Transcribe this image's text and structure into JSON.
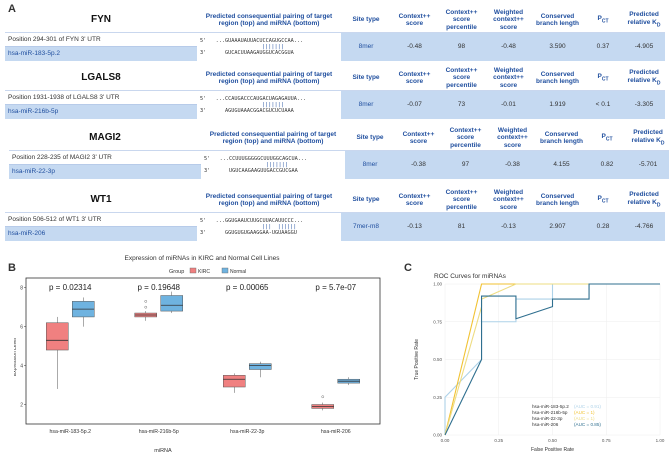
{
  "panel_labels": {
    "a": "A",
    "b": "B",
    "c": "C"
  },
  "table": {
    "headers": {
      "pairing": "Predicted consequential pairing of target region (top) and miRNA (bottom)",
      "site_type": "Site type",
      "context_score": "Context++ score",
      "context_pct": "Context++ score percentile",
      "weighted": "Weighted context++ score",
      "branch": "Conserved branch length",
      "pct": "P",
      "pct_sub": "CT",
      "kd": "Predicted relative K",
      "kd_sub": "D"
    },
    "rows": [
      {
        "gene": "FYN",
        "position": "Position 294-301 of FYN 3' UTR",
        "mirna": "hsa-miR-183-5p.2",
        "top": "5'   ...GUAAAUAUUACUCCAGUGCCAA...",
        "bars": "|||||||",
        "bottom": "3'      GUCACUUAAGAUGGUCACGGUA",
        "site": "8mer",
        "ctx": "-0.48",
        "pctl": "98",
        "wctx": "-0.48",
        "branch": "3.590",
        "pct": "0.37",
        "kd": "-4.905"
      },
      {
        "gene": "LGALS8",
        "position": "Position 1931-1938 of LGALS8 3' UTR",
        "mirna": "hsa-miR-216b-5p",
        "top": "5'   ...CCAUGACCCAUGACUAGAGAUUA...",
        "bars": "|||||||",
        "bottom": "3'      AGUGUAAACGGACGUCUCUAAA",
        "site": "8mer",
        "ctx": "-0.07",
        "pctl": "73",
        "wctx": "-0.01",
        "branch": "1.919",
        "pct": "< 0.1",
        "kd": "-3.305"
      },
      {
        "gene": "MAGI2",
        "position": "Position 228-235 of MAGI2 3' UTR",
        "mirna": "hsa-miR-22-3p",
        "top": "5'   ...CCUUUGGGGGCUUUGGCAGCUA...",
        "bars": "|||||||",
        "bottom": "3'      UGUCAAGAAGUUGACCGUCGAA",
        "site": "8mer",
        "ctx": "-0.38",
        "pctl": "97",
        "wctx": "-0.38",
        "branch": "4.155",
        "pct": "0.82",
        "kd": "-5.701"
      },
      {
        "gene": "WT1",
        "position": "Position 506-512 of WT1 3' UTR",
        "mirna": "hsa-miR-206",
        "top": "5'   ...GGUGAAUCUUGCUUACAUUCCC...",
        "bars": "|||  ||||||",
        "bottom": "3'      GGUGUGUGAAGGAA-UGUAAGGU",
        "site": "7mer-m8",
        "ctx": "-0.13",
        "pctl": "81",
        "wctx": "-0.13",
        "branch": "2.907",
        "pct": "0.28",
        "kd": "-4.766"
      }
    ]
  },
  "chart_data": [
    {
      "type": "boxplot",
      "title": "Expression of miRNAs in KIRC and Normal Cell Lines",
      "xlabel": "miRNA",
      "ylabel": "Expression Level",
      "legend_title": "Group",
      "legend": [
        "KIRC",
        "Normal"
      ],
      "colors": {
        "KIRC": "#f08080",
        "Normal": "#6fb3e0"
      },
      "categories": [
        "hsa-miR-183-5p.2",
        "hsa-miR-216b-5p",
        "hsa-miR-22-3p",
        "hsa-miR-206"
      ],
      "pvalues": [
        "p = 0.02314",
        "p = 0.19648",
        "p = 0.00065",
        "p = 5.7e-07"
      ],
      "yticks": [
        2,
        4,
        6,
        8
      ],
      "ylim": [
        1,
        8.5
      ],
      "series": [
        {
          "name": "KIRC",
          "boxes": [
            {
              "min": 2.8,
              "q1": 4.8,
              "median": 5.3,
              "q3": 6.2,
              "max": 6.5,
              "outliers": []
            },
            {
              "min": 6.3,
              "q1": 6.5,
              "median": 6.6,
              "q3": 6.7,
              "max": 6.8,
              "outliers": [
                7.0,
                7.3
              ]
            },
            {
              "min": 2.6,
              "q1": 2.9,
              "median": 3.3,
              "q3": 3.5,
              "max": 3.6,
              "outliers": []
            },
            {
              "min": 1.7,
              "q1": 1.8,
              "median": 1.9,
              "q3": 2.0,
              "max": 2.1,
              "outliers": [
                2.4
              ]
            }
          ]
        },
        {
          "name": "Normal",
          "boxes": [
            {
              "min": 6.0,
              "q1": 6.5,
              "median": 6.9,
              "q3": 7.3,
              "max": 7.5,
              "outliers": []
            },
            {
              "min": 6.7,
              "q1": 6.8,
              "median": 7.1,
              "q3": 7.6,
              "max": 7.8,
              "outliers": []
            },
            {
              "min": 3.4,
              "q1": 3.8,
              "median": 4.0,
              "q3": 4.1,
              "max": 4.2,
              "outliers": []
            },
            {
              "min": 3.0,
              "q1": 3.1,
              "median": 3.2,
              "q3": 3.3,
              "max": 3.4,
              "outliers": []
            }
          ]
        }
      ]
    },
    {
      "type": "line",
      "title": "ROC Curves for miRNAs",
      "xlabel": "False Positive Rate",
      "ylabel": "True Positive Rate",
      "xlim": [
        0,
        1
      ],
      "ylim": [
        0,
        1
      ],
      "ticks": [
        "0.00",
        "0.25",
        "0.50",
        "0.75",
        "1.00"
      ],
      "series": [
        {
          "name": "hsa-miR-183-5p.2",
          "auc": "(AUC = 0.91)",
          "color": "#aed2e8",
          "x": [
            0,
            0,
            0.17,
            0.17,
            0.33,
            0.33,
            0.5,
            0.5,
            1.0
          ],
          "y": [
            0,
            0.25,
            0.5,
            0.75,
            0.75,
            0.9,
            0.9,
            1.0,
            1.0
          ]
        },
        {
          "name": "hsa-miR-216b-5p",
          "auc": "(AUC = 1)",
          "color": "#f1c232",
          "x": [
            0,
            0.17,
            1.0
          ],
          "y": [
            0,
            1.0,
            1.0
          ]
        },
        {
          "name": "hsa-miR-22-3p",
          "auc": "(AUC = 1)",
          "color": "#eedc82",
          "x": [
            0,
            0.17,
            0.17,
            0.33,
            1.0
          ],
          "y": [
            0,
            0.85,
            0.9,
            1.0,
            1.0
          ]
        },
        {
          "name": "hsa-miR-206",
          "auc": "(AUC = 0.85)",
          "color": "#2f6f8f",
          "x": [
            0,
            0.17,
            0.17,
            0.33,
            0.33,
            0.5,
            0.5,
            0.67,
            0.67,
            1.0
          ],
          "y": [
            0,
            0.5,
            0.92,
            0.92,
            0.77,
            0.85,
            0.9,
            0.9,
            1.0,
            1.0
          ]
        }
      ]
    }
  ]
}
